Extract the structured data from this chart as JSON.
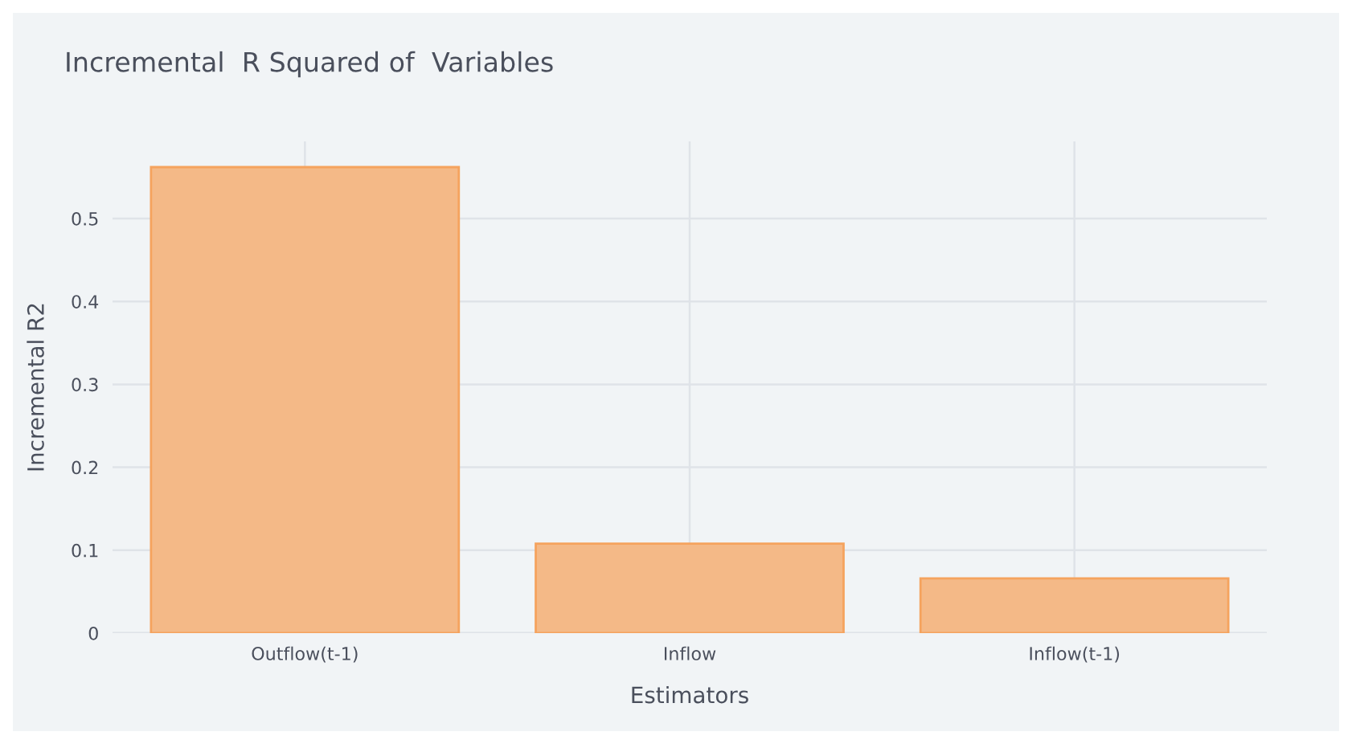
{
  "chart_data": {
    "type": "bar",
    "title": "Incremental  R Squared of  Variables",
    "xlabel": "Estimators",
    "ylabel": "Incremental R2",
    "categories": [
      "Outflow(t-1)",
      "Inflow",
      "Inflow(t-1)"
    ],
    "values": [
      0.562,
      0.108,
      0.066
    ],
    "color": "#f4b987",
    "ylim": [
      0,
      0.593
    ],
    "yticks": [
      0,
      0.1,
      0.2,
      0.3,
      0.4,
      0.5
    ],
    "grid": true
  }
}
